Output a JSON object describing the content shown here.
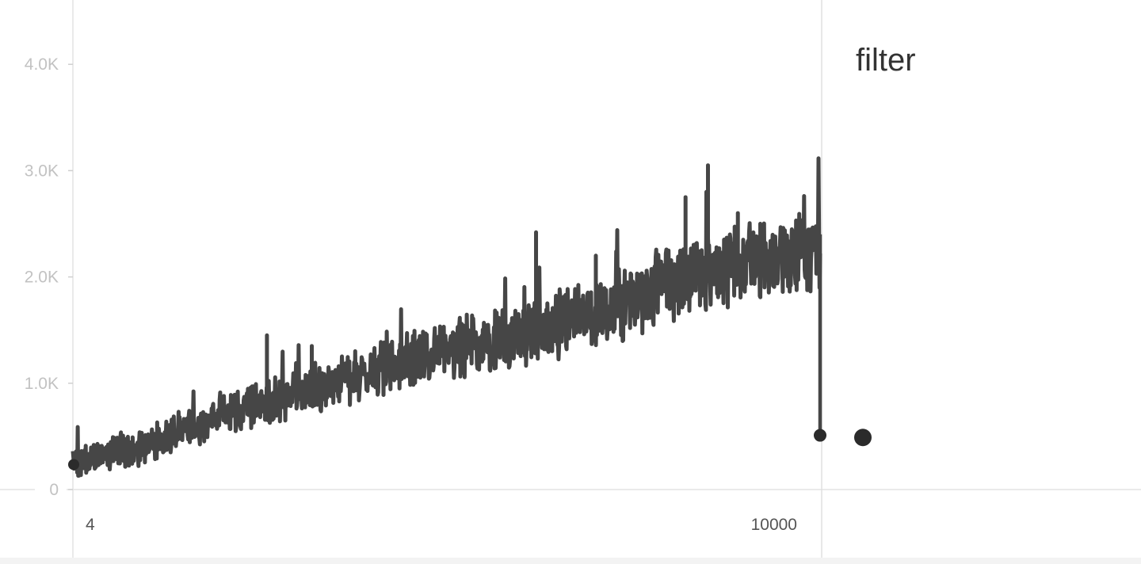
{
  "chart_data": {
    "type": "line",
    "title": "",
    "xlabel": "",
    "ylabel": "",
    "x_tick_labels": [
      "4",
      "10000"
    ],
    "y_tick_labels": [
      "0",
      "1.0K",
      "2.0K",
      "3.0K",
      "4.0K"
    ],
    "xlim": [
      4,
      10000
    ],
    "ylim": [
      0,
      4400
    ],
    "grid": false,
    "legend_position": "right",
    "series": [
      {
        "name": "filter",
        "color": "#464646",
        "trend": [
          [
            4,
            250
          ],
          [
            1000,
            420
          ],
          [
            2000,
            700
          ],
          [
            3000,
            900
          ],
          [
            4000,
            1100
          ],
          [
            5000,
            1320
          ],
          [
            6000,
            1450
          ],
          [
            7000,
            1650
          ],
          [
            8000,
            1950
          ],
          [
            9000,
            2150
          ],
          [
            10000,
            2250
          ]
        ],
        "band_halfwidth": [
          [
            4,
            120
          ],
          [
            10000,
            320
          ]
        ],
        "spikes": [
          [
            2600,
            1450
          ],
          [
            6200,
            2420
          ],
          [
            8500,
            3050
          ],
          [
            8900,
            2600
          ],
          [
            8200,
            2750
          ],
          [
            3200,
            1350
          ],
          [
            7000,
            2200
          ],
          [
            9200,
            2500
          ]
        ],
        "end_value": 510,
        "summary_point": 490
      }
    ]
  }
}
